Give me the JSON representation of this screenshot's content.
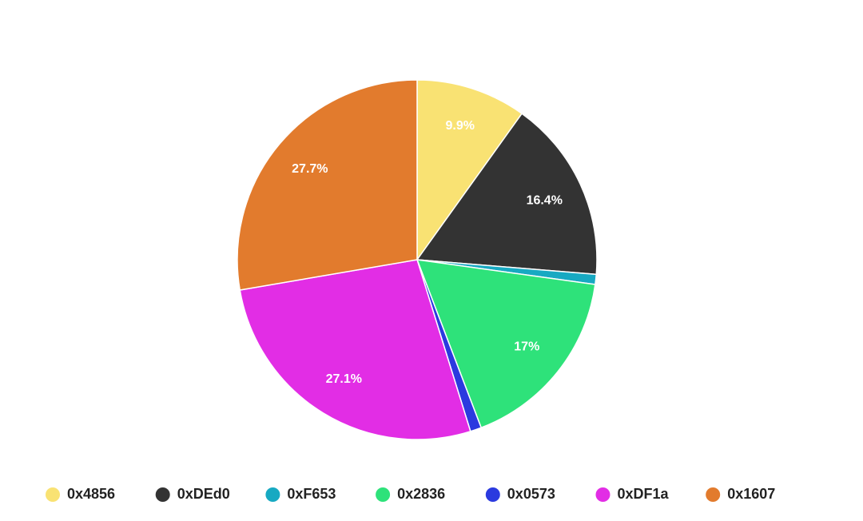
{
  "chart_data": {
    "type": "pie",
    "categories": [
      "0x4856",
      "0xDEd0",
      "0xF653",
      "0x2836",
      "0x0573",
      "0xDF1a",
      "0x1607"
    ],
    "values": [
      9.9,
      16.4,
      0.9,
      17,
      1.0,
      27.1,
      27.7
    ],
    "value_labels": [
      "9.9%",
      "16.4%",
      null,
      "17%",
      null,
      "27.1%",
      "27.7%"
    ],
    "colors": [
      "#f9e273",
      "#333333",
      "#17a9c2",
      "#2ee27a",
      "#2b3adf",
      "#e22de5",
      "#e27b2d"
    ],
    "legend": "bottom"
  }
}
